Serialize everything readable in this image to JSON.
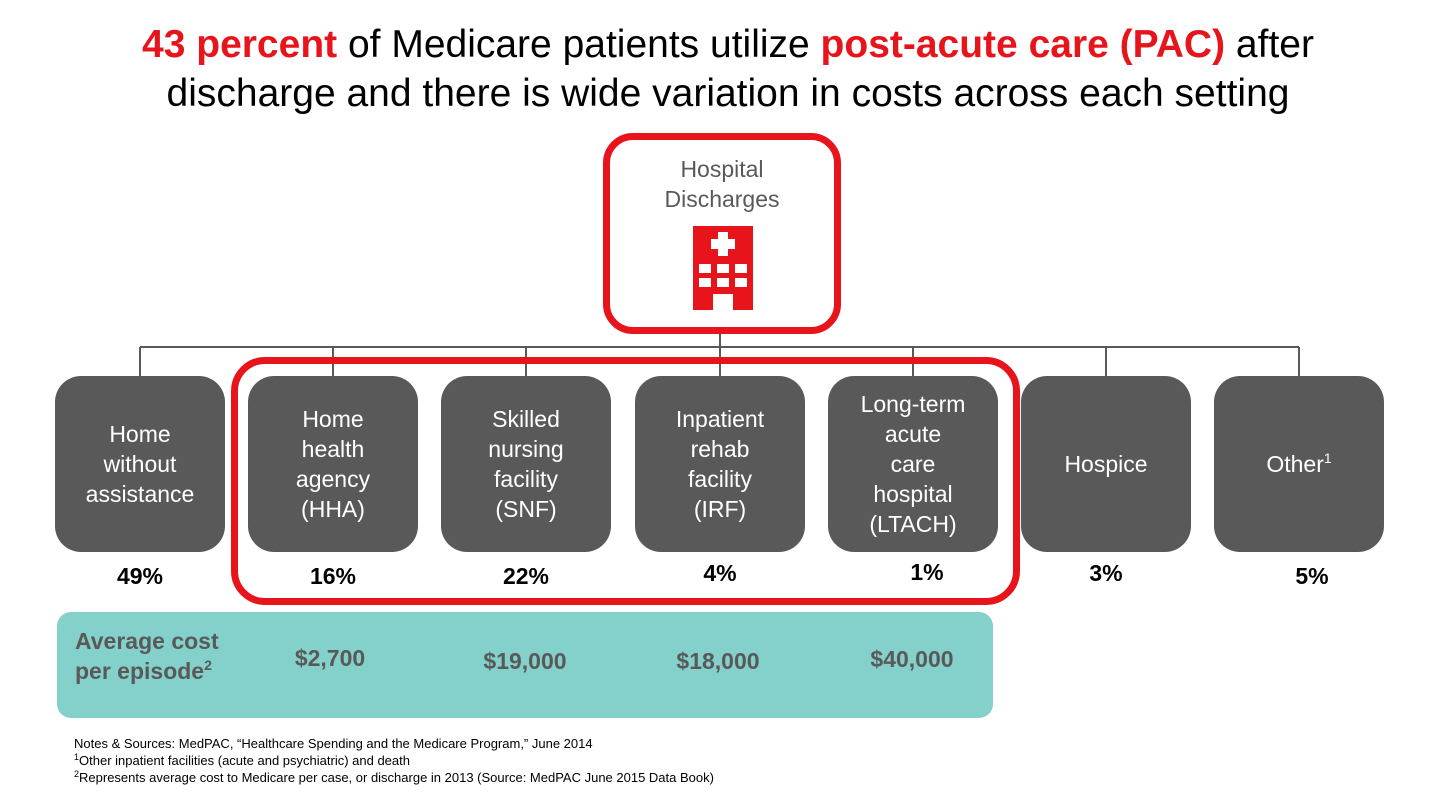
{
  "title": {
    "part1_highlight": "43 percent",
    "part2": " of Medicare patients utilize ",
    "part3_highlight": "post-acute care (PAC)",
    "part4": " after",
    "line2": "discharge and there is wide variation in costs across each setting"
  },
  "root": {
    "line1": "Hospital",
    "line2": "Discharges",
    "icon": "hospital-building-icon"
  },
  "nodes": [
    {
      "lines": [
        "Home",
        "without",
        "assistance"
      ],
      "percent": "49%"
    },
    {
      "lines": [
        "Home",
        "health",
        "agency",
        "(HHA)"
      ],
      "percent": "16%",
      "cost": "$2,700"
    },
    {
      "lines": [
        "Skilled",
        "nursing",
        "facility",
        "(SNF)"
      ],
      "percent": "22%",
      "cost": "$19,000"
    },
    {
      "lines": [
        "Inpatient",
        "rehab",
        "facility",
        "(IRF)"
      ],
      "percent": "4%",
      "cost": "$18,000"
    },
    {
      "lines": [
        "Long-term",
        "acute",
        "care",
        "hospital",
        "(LTACH)"
      ],
      "percent": "1%",
      "cost": "$40,000"
    },
    {
      "lines": [
        "Hospice"
      ],
      "percent": "3%"
    },
    {
      "lines": [
        "Other"
      ],
      "sup": "1",
      "percent": "5%"
    }
  ],
  "cost_panel": {
    "title_line1": "Average cost",
    "title_line2": "per episode",
    "title_sup": "2"
  },
  "notes": {
    "line1": "Notes & Sources: MedPAC, “Healthcare Spending and the Medicare Program,” June 2014",
    "line2_sup": "1",
    "line2": "Other inpatient facilities (acute and psychiatric) and death",
    "line3_sup": "2",
    "line3": "Represents average cost to Medicare per case, or discharge in 2013 (Source: MedPAC June 2015 Data Book)"
  },
  "colors": {
    "accent_red": "#e8141c",
    "node_gray": "#595959",
    "cost_panel_teal": "#84d1cb",
    "connector_gray": "#595959"
  }
}
